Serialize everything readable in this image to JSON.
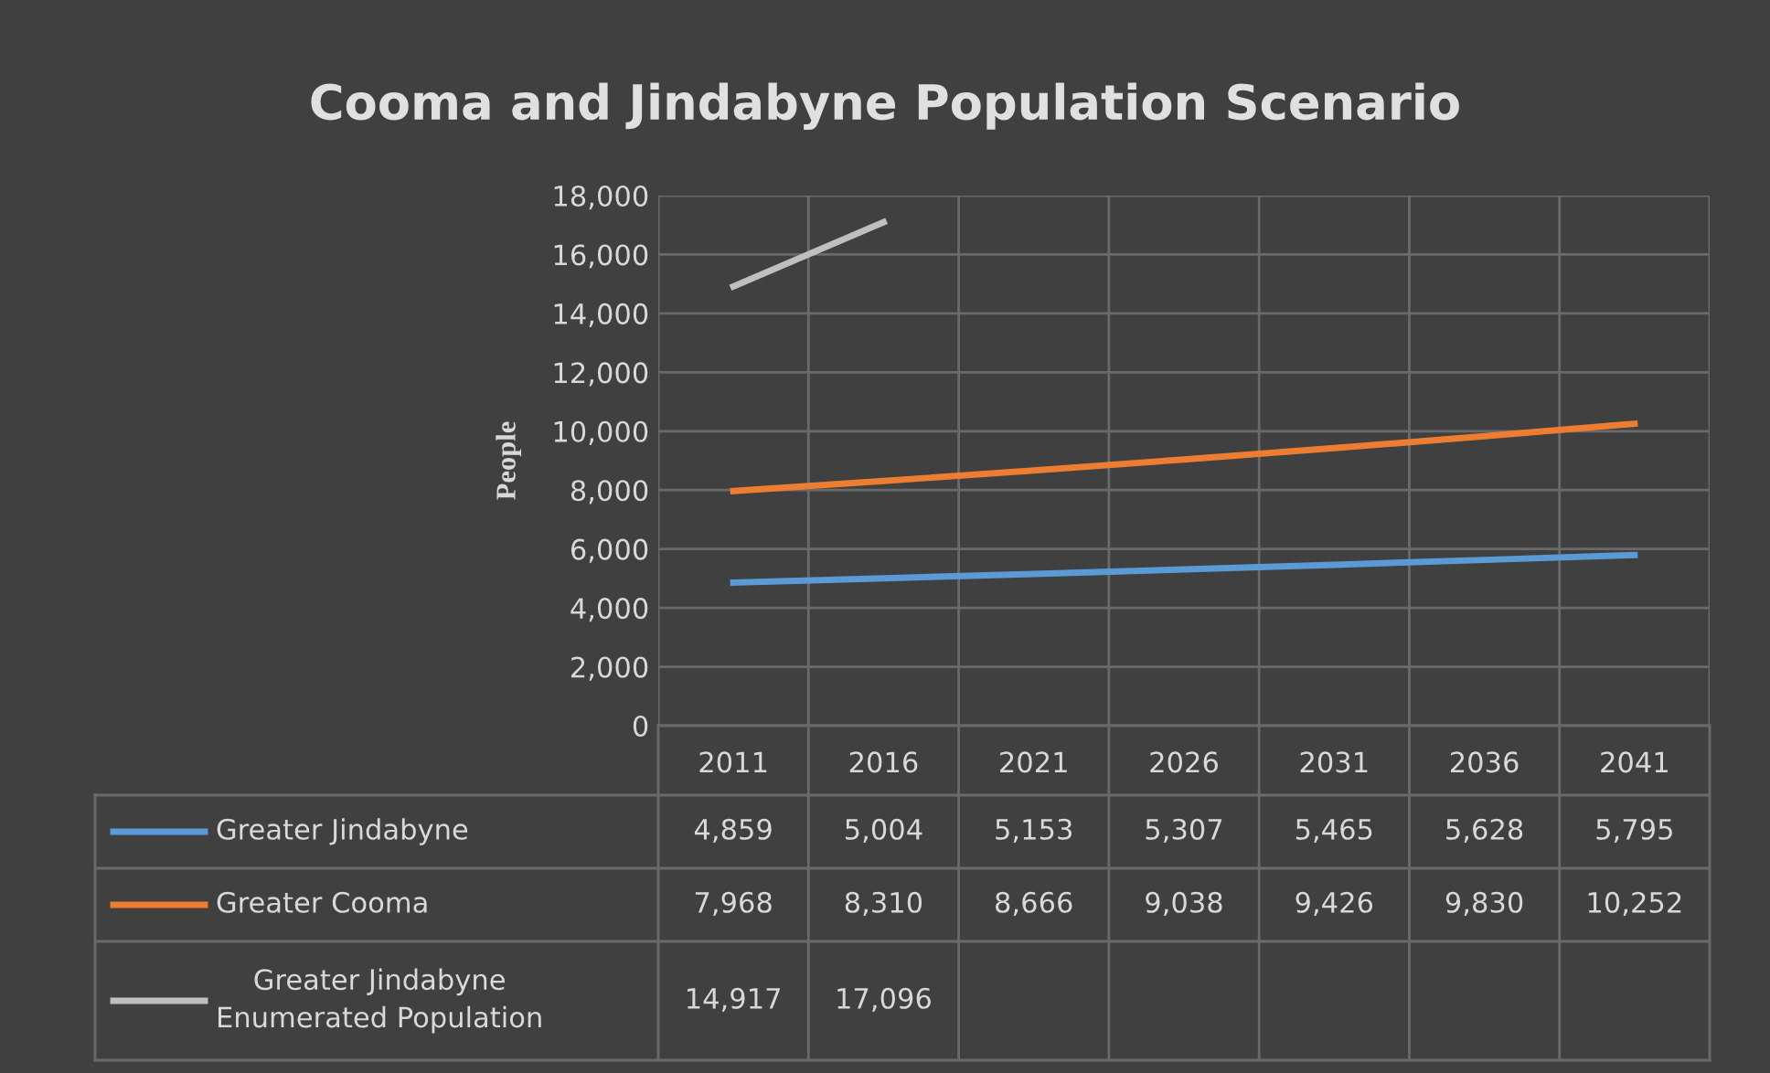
{
  "chart_data": {
    "type": "line",
    "title": "Cooma and Jindabyne Population Scenario",
    "ylabel": "People",
    "categories": [
      "2011",
      "2016",
      "2021",
      "2026",
      "2031",
      "2036",
      "2041"
    ],
    "series": [
      {
        "name": "Greater Jindabyne",
        "color": "#5b9bd5",
        "values": [
          4859,
          5004,
          5153,
          5307,
          5465,
          5628,
          5795
        ],
        "value_labels": [
          "4,859",
          "5,004",
          "5,153",
          "5,307",
          "5,465",
          "5,628",
          "5,795"
        ]
      },
      {
        "name": "Greater Cooma",
        "color": "#ed7d31",
        "values": [
          7968,
          8310,
          8666,
          9038,
          9426,
          9830,
          10252
        ],
        "value_labels": [
          "7,968",
          "8,310",
          "8,666",
          "9,038",
          "9,426",
          "9,830",
          "10,252"
        ]
      },
      {
        "name": "Greater Jindabyne\nEnumerated Population",
        "color": "#bfbfbf",
        "values": [
          14917,
          17096,
          null,
          null,
          null,
          null,
          null
        ],
        "value_labels": [
          "14,917",
          "17,096",
          null,
          null,
          null,
          null,
          null
        ]
      }
    ],
    "ylim": [
      0,
      18000
    ],
    "yticks": [
      {
        "value": 0,
        "label": "0"
      },
      {
        "value": 2000,
        "label": "2,000"
      },
      {
        "value": 4000,
        "label": "4,000"
      },
      {
        "value": 6000,
        "label": "6,000"
      },
      {
        "value": 8000,
        "label": "8,000"
      },
      {
        "value": 10000,
        "label": "10,000"
      },
      {
        "value": 12000,
        "label": "12,000"
      },
      {
        "value": 14000,
        "label": "14,000"
      },
      {
        "value": 16000,
        "label": "16,000"
      },
      {
        "value": 18000,
        "label": "18,000"
      }
    ],
    "grid": true,
    "legend": "bottom",
    "marker": "none",
    "line_style": "solid"
  }
}
